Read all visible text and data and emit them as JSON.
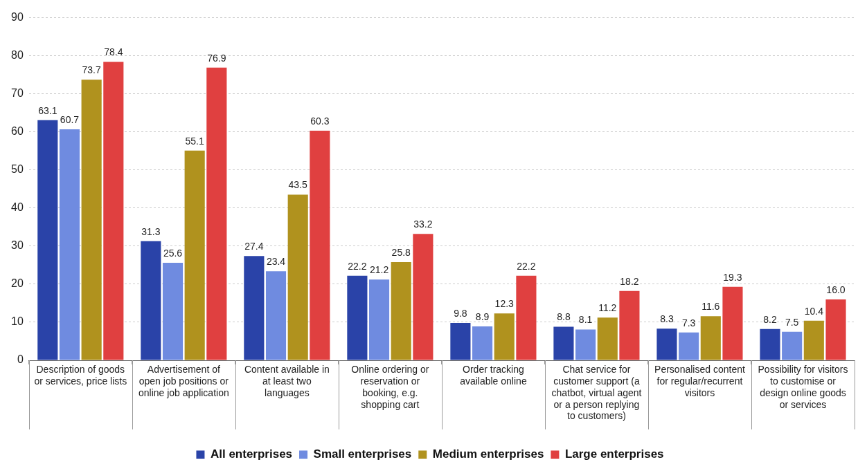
{
  "chart_data": {
    "type": "bar",
    "categories": [
      "Description of goods or services, price lists",
      "Advertisement of open job positions or online job application",
      "Content available in at least two languages",
      "Online ordering or reservation or booking, e.g. shopping cart",
      "Order tracking available online",
      "Chat service for customer support (a chatbot, virtual agent or a person replying to customers)",
      "Personalised content for regular/recurrent visitors",
      "Possibility for visitors to customise or design online goods or services"
    ],
    "series": [
      {
        "name": "All enterprises",
        "color": "#2a43a8",
        "values": [
          63.1,
          31.3,
          27.4,
          22.2,
          9.8,
          8.8,
          8.3,
          8.2
        ],
        "value_labels": [
          "63.1",
          "31.3",
          "27.4",
          "22.2",
          "9.8",
          "8.8",
          "8.3",
          "8.2"
        ]
      },
      {
        "name": "Small enterprises",
        "color": "#6f8be0",
        "values": [
          60.7,
          25.6,
          23.4,
          21.2,
          8.9,
          8.1,
          7.3,
          7.5
        ],
        "value_labels": [
          "60.7",
          "25.6",
          "23.4",
          "21.2",
          "8.9",
          "8.1",
          "7.3",
          "7.5"
        ]
      },
      {
        "name": "Medium enterprises",
        "color": "#b0921e",
        "values": [
          73.7,
          55.1,
          43.5,
          25.8,
          12.3,
          11.2,
          11.6,
          10.4
        ],
        "value_labels": [
          "73.7",
          "55.1",
          "43.5",
          "25.8",
          "12.3",
          "11.2",
          "11.6",
          "10.4"
        ]
      },
      {
        "name": "Large enterprises",
        "color": "#e04040",
        "values": [
          78.4,
          76.9,
          60.3,
          33.2,
          22.2,
          18.2,
          19.3,
          16.0
        ],
        "value_labels": [
          "78.4",
          "76.9",
          "60.3",
          "33.2",
          "22.2",
          "18.2",
          "19.3",
          "16.0"
        ]
      }
    ],
    "ylim": [
      0,
      90
    ],
    "yticks": [
      0,
      10,
      20,
      30,
      40,
      50,
      60,
      70,
      80,
      90
    ],
    "grid": "y",
    "legend": "bottom"
  }
}
